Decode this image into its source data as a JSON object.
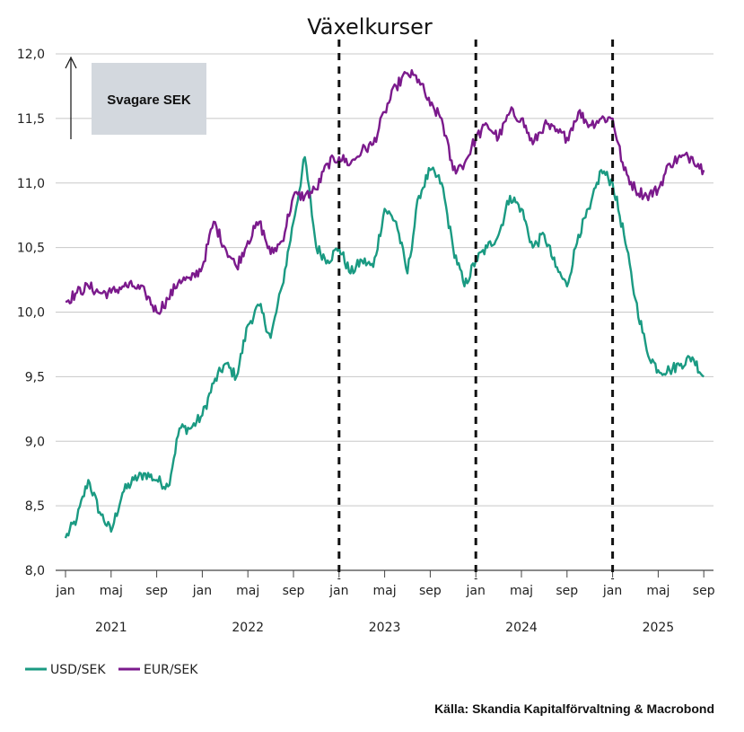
{
  "chart_data": {
    "type": "line",
    "title": "Växelkurser",
    "ylim": [
      8.0,
      12.0
    ],
    "ytick_labels": [
      "8,0",
      "8,5",
      "9,0",
      "9,5",
      "10,0",
      "10,5",
      "11,0",
      "11,5",
      "12,0"
    ],
    "ytick_values": [
      8.0,
      8.5,
      9.0,
      9.5,
      10.0,
      10.5,
      11.0,
      11.5,
      12.0
    ],
    "month_ticks": [
      "jan",
      "maj",
      "sep",
      "jan",
      "maj",
      "sep",
      "jan",
      "maj",
      "sep",
      "jan",
      "maj",
      "sep",
      "jan",
      "maj",
      "sep"
    ],
    "year_labels": [
      "2021",
      "2022",
      "2023",
      "2024",
      "2025"
    ],
    "grid": true,
    "legend_position": "bottom-left",
    "annotation": "Svagare SEK",
    "source": "Källa: Skandia Kapitalförvaltning & Macrobond",
    "vlines": [
      "2023-01",
      "2024-01",
      "2025-01"
    ],
    "series": [
      {
        "name": "USD/SEK",
        "color": "#1a9a82",
        "x": [
          "2021-01",
          "2021-02",
          "2021-03",
          "2021-04",
          "2021-05",
          "2021-06",
          "2021-07",
          "2021-08",
          "2021-09",
          "2021-10",
          "2021-11",
          "2021-12",
          "2022-01",
          "2022-02",
          "2022-03",
          "2022-04",
          "2022-05",
          "2022-06",
          "2022-07",
          "2022-08",
          "2022-09",
          "2022-10",
          "2022-11",
          "2022-12",
          "2023-01",
          "2023-02",
          "2023-03",
          "2023-04",
          "2023-05",
          "2023-06",
          "2023-07",
          "2023-08",
          "2023-09",
          "2023-10",
          "2023-11",
          "2023-12",
          "2024-01",
          "2024-02",
          "2024-03",
          "2024-04",
          "2024-05",
          "2024-06",
          "2024-07",
          "2024-08",
          "2024-09",
          "2024-10",
          "2024-11",
          "2024-12",
          "2025-01",
          "2025-02",
          "2025-03",
          "2025-04",
          "2025-05",
          "2025-06",
          "2025-07",
          "2025-08",
          "2025-09"
        ],
        "values": [
          8.25,
          8.4,
          8.7,
          8.45,
          8.3,
          8.6,
          8.7,
          8.75,
          8.7,
          8.65,
          9.1,
          9.1,
          9.2,
          9.45,
          9.6,
          9.5,
          9.9,
          10.05,
          9.8,
          10.2,
          10.7,
          11.2,
          10.5,
          10.4,
          10.5,
          10.3,
          10.4,
          10.35,
          10.8,
          10.7,
          10.3,
          10.9,
          11.1,
          11.0,
          10.5,
          10.2,
          10.4,
          10.5,
          10.6,
          10.9,
          10.8,
          10.5,
          10.6,
          10.35,
          10.2,
          10.6,
          10.8,
          11.1,
          11.0,
          10.6,
          10.1,
          9.7,
          9.55,
          9.55,
          9.6,
          9.65,
          9.5
        ]
      },
      {
        "name": "EUR/SEK",
        "color": "#7b1a8c",
        "x": [
          "2021-01",
          "2021-02",
          "2021-03",
          "2021-04",
          "2021-05",
          "2021-06",
          "2021-07",
          "2021-08",
          "2021-09",
          "2021-10",
          "2021-11",
          "2021-12",
          "2022-01",
          "2022-02",
          "2022-03",
          "2022-04",
          "2022-05",
          "2022-06",
          "2022-07",
          "2022-08",
          "2022-09",
          "2022-10",
          "2022-11",
          "2022-12",
          "2023-01",
          "2023-02",
          "2023-03",
          "2023-04",
          "2023-05",
          "2023-06",
          "2023-07",
          "2023-08",
          "2023-09",
          "2023-10",
          "2023-11",
          "2023-12",
          "2024-01",
          "2024-02",
          "2024-03",
          "2024-04",
          "2024-05",
          "2024-06",
          "2024-07",
          "2024-08",
          "2024-09",
          "2024-10",
          "2024-11",
          "2024-12",
          "2025-01",
          "2025-02",
          "2025-03",
          "2025-04",
          "2025-05",
          "2025-06",
          "2025-07",
          "2025-08",
          "2025-09"
        ],
        "values": [
          10.08,
          10.15,
          10.2,
          10.15,
          10.15,
          10.2,
          10.2,
          10.15,
          10.0,
          10.1,
          10.25,
          10.25,
          10.35,
          10.7,
          10.5,
          10.35,
          10.55,
          10.7,
          10.45,
          10.55,
          10.9,
          10.9,
          10.95,
          11.15,
          11.2,
          11.15,
          11.25,
          11.3,
          11.55,
          11.75,
          11.85,
          11.8,
          11.6,
          11.5,
          11.1,
          11.15,
          11.35,
          11.45,
          11.35,
          11.55,
          11.5,
          11.3,
          11.45,
          11.4,
          11.35,
          11.55,
          11.45,
          11.5,
          11.5,
          11.1,
          10.95,
          10.9,
          10.95,
          11.15,
          11.2,
          11.2,
          11.1
        ]
      }
    ]
  }
}
